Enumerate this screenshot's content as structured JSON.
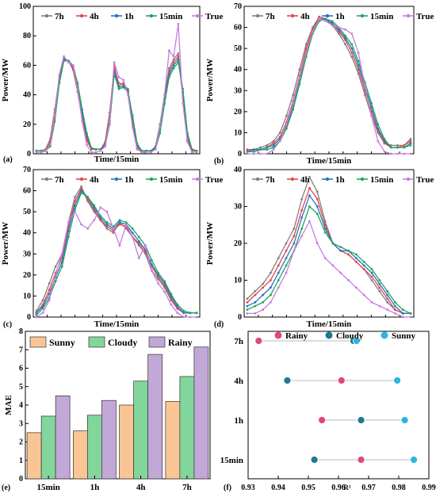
{
  "chart_data": [
    {
      "panel": "(a)",
      "type": "line",
      "xlabel": "Time/15min",
      "ylabel": "Power/MW",
      "ylim": [
        0,
        100
      ],
      "yticks": [
        0,
        20,
        40,
        60,
        80,
        100
      ],
      "legend": [
        "7h",
        "4h",
        "1h",
        "15min",
        "True"
      ],
      "colors": [
        "#808080",
        "#e8454a",
        "#2a73c8",
        "#1fa65a",
        "#c77dde"
      ],
      "grid": false,
      "series": [
        {
          "name": "7h",
          "values": [
            2,
            2,
            3,
            10,
            30,
            52,
            64,
            63,
            58,
            44,
            26,
            10,
            3,
            3,
            3,
            8,
            28,
            58,
            48,
            47,
            44,
            22,
            5,
            2,
            2,
            2,
            5,
            20,
            40,
            58,
            64,
            68,
            40,
            10,
            2,
            2
          ]
        },
        {
          "name": "4h",
          "values": [
            2,
            2,
            2,
            8,
            28,
            52,
            65,
            63,
            57,
            42,
            24,
            9,
            3,
            3,
            3,
            7,
            25,
            60,
            46,
            48,
            42,
            20,
            4,
            2,
            2,
            2,
            4,
            18,
            38,
            56,
            62,
            66,
            38,
            9,
            2,
            2
          ]
        },
        {
          "name": "1h",
          "values": [
            2,
            2,
            2,
            6,
            24,
            50,
            64,
            63,
            59,
            46,
            28,
            12,
            4,
            3,
            3,
            6,
            22,
            56,
            45,
            46,
            43,
            24,
            6,
            2,
            2,
            2,
            4,
            16,
            36,
            54,
            60,
            64,
            42,
            12,
            3,
            2
          ]
        },
        {
          "name": "15min",
          "values": [
            2,
            2,
            2,
            5,
            22,
            48,
            63,
            63,
            60,
            48,
            30,
            14,
            4,
            3,
            3,
            5,
            20,
            54,
            44,
            45,
            42,
            26,
            7,
            2,
            2,
            2,
            3,
            14,
            34,
            52,
            58,
            62,
            44,
            14,
            3,
            2
          ]
        },
        {
          "name": "True",
          "values": [
            1,
            1,
            2,
            6,
            26,
            54,
            66,
            62,
            60,
            44,
            22,
            6,
            1,
            1,
            2,
            5,
            22,
            62,
            52,
            50,
            40,
            18,
            3,
            1,
            1,
            1,
            3,
            18,
            40,
            70,
            66,
            88,
            34,
            8,
            1,
            1
          ]
        }
      ]
    },
    {
      "panel": "(b)",
      "type": "line",
      "xlabel": "Time/15min",
      "ylabel": "Power/MW",
      "ylim": [
        0,
        70
      ],
      "yticks": [
        0,
        10,
        20,
        30,
        40,
        50,
        60,
        70
      ],
      "legend": [
        "7h",
        "4h",
        "1h",
        "15min",
        "True"
      ],
      "colors": [
        "#808080",
        "#e8454a",
        "#2a73c8",
        "#1fa65a",
        "#c77dde"
      ],
      "grid": false,
      "series": [
        {
          "name": "7h",
          "values": [
            2,
            2,
            3,
            4,
            6,
            10,
            18,
            28,
            40,
            52,
            60,
            65,
            64,
            61,
            57,
            52,
            46,
            38,
            28,
            18,
            10,
            5,
            4,
            4,
            4,
            7
          ]
        },
        {
          "name": "4h",
          "values": [
            2,
            2,
            2,
            3,
            5,
            8,
            15,
            25,
            37,
            50,
            59,
            65,
            64,
            62,
            58,
            54,
            48,
            40,
            30,
            20,
            11,
            5,
            3,
            3,
            4,
            6
          ]
        },
        {
          "name": "1h",
          "values": [
            1,
            2,
            2,
            3,
            4,
            7,
            13,
            23,
            35,
            48,
            58,
            64,
            64,
            62,
            59,
            55,
            50,
            42,
            32,
            22,
            12,
            6,
            3,
            3,
            3,
            5
          ]
        },
        {
          "name": "15min",
          "values": [
            1,
            1,
            2,
            2,
            3,
            6,
            12,
            21,
            33,
            46,
            57,
            63,
            64,
            63,
            60,
            56,
            52,
            44,
            34,
            24,
            14,
            7,
            3,
            3,
            3,
            4
          ]
        },
        {
          "name": "True",
          "values": [
            0,
            0,
            0,
            0,
            2,
            6,
            14,
            24,
            36,
            48,
            58,
            64,
            63,
            61,
            60,
            59,
            57,
            48,
            32,
            18,
            6,
            1,
            0,
            0,
            0,
            0
          ]
        }
      ]
    },
    {
      "panel": "(c)",
      "type": "line",
      "xlabel": "Time/15min",
      "ylabel": "Power/MW",
      "ylim": [
        0,
        70
      ],
      "yticks": [
        0,
        10,
        20,
        30,
        40,
        50,
        60,
        70
      ],
      "legend": [
        "7h",
        "4h",
        "1h",
        "15min",
        "True"
      ],
      "colors": [
        "#808080",
        "#e8454a",
        "#2a73c8",
        "#1fa65a",
        "#c77dde"
      ],
      "grid": false,
      "series": [
        {
          "name": "7h",
          "values": [
            3,
            8,
            16,
            24,
            30,
            45,
            57,
            62,
            55,
            50,
            46,
            42,
            40,
            45,
            42,
            38,
            34,
            30,
            22,
            18,
            14,
            8,
            4,
            2,
            2,
            2
          ]
        },
        {
          "name": "4h",
          "values": [
            2,
            6,
            13,
            21,
            28,
            43,
            55,
            61,
            56,
            51,
            46,
            43,
            41,
            44,
            43,
            38,
            35,
            31,
            24,
            19,
            15,
            9,
            4,
            2,
            2,
            2
          ]
        },
        {
          "name": "1h",
          "values": [
            2,
            5,
            11,
            19,
            26,
            41,
            53,
            60,
            57,
            52,
            47,
            44,
            42,
            45,
            44,
            40,
            36,
            32,
            25,
            20,
            16,
            10,
            5,
            2,
            2,
            2
          ]
        },
        {
          "name": "15min",
          "values": [
            1,
            4,
            9,
            17,
            24,
            38,
            51,
            59,
            57,
            53,
            48,
            45,
            43,
            46,
            45,
            42,
            38,
            34,
            27,
            21,
            17,
            11,
            6,
            3,
            2,
            2
          ]
        },
        {
          "name": "True",
          "values": [
            0,
            2,
            8,
            20,
            30,
            45,
            50,
            44,
            42,
            46,
            52,
            50,
            42,
            34,
            44,
            38,
            28,
            34,
            22,
            16,
            12,
            6,
            2,
            0,
            0,
            0
          ]
        }
      ]
    },
    {
      "panel": "(d)",
      "type": "line",
      "xlabel": "Time/15min",
      "ylabel": "Power/MW",
      "ylim": [
        0,
        40
      ],
      "yticks": [
        0,
        10,
        20,
        30,
        40
      ],
      "legend": [
        "7h",
        "4h",
        "1h",
        "15min",
        "True"
      ],
      "colors": [
        "#808080",
        "#e8454a",
        "#2a73c8",
        "#1fa65a",
        "#c77dde"
      ],
      "grid": false,
      "series": [
        {
          "name": "7h",
          "values": [
            5,
            7,
            9,
            12,
            16,
            20,
            24,
            32,
            38,
            34,
            26,
            20,
            18,
            17,
            15,
            13,
            10,
            7,
            4,
            2,
            1,
            1
          ]
        },
        {
          "name": "4h",
          "values": [
            4,
            6,
            8,
            10,
            14,
            18,
            22,
            29,
            35,
            32,
            25,
            20,
            18,
            17,
            15,
            13,
            11,
            8,
            5,
            2,
            1,
            1
          ]
        },
        {
          "name": "1h",
          "values": [
            3,
            4,
            6,
            8,
            12,
            16,
            20,
            27,
            33,
            30,
            24,
            20,
            18,
            18,
            16,
            14,
            12,
            9,
            6,
            3,
            1,
            1
          ]
        },
        {
          "name": "15min",
          "values": [
            2,
            3,
            4,
            6,
            10,
            14,
            18,
            24,
            30,
            28,
            23,
            20,
            19,
            18,
            17,
            15,
            13,
            10,
            7,
            4,
            2,
            1
          ]
        },
        {
          "name": "True",
          "values": [
            1,
            1,
            2,
            4,
            8,
            12,
            18,
            22,
            26,
            20,
            16,
            14,
            12,
            10,
            8,
            6,
            4,
            3,
            2,
            1,
            0,
            0
          ]
        }
      ]
    },
    {
      "panel": "(e)",
      "type": "bar",
      "categories": [
        "15min",
        "1h",
        "4h",
        "7h"
      ],
      "ylabel": "MAE",
      "ylim": [
        0,
        8
      ],
      "yticks": [
        0,
        1,
        2,
        3,
        4,
        5,
        6,
        7,
        8
      ],
      "legend_placement": "top",
      "series": [
        {
          "name": "Sunny",
          "color": "#fac595",
          "values": [
            2.5,
            2.6,
            4.0,
            4.2
          ]
        },
        {
          "name": "Cloudy",
          "color": "#82d69c",
          "values": [
            3.4,
            3.45,
            5.3,
            5.55
          ]
        },
        {
          "name": "Rainy",
          "color": "#c2a8d6",
          "values": [
            4.5,
            4.25,
            6.75,
            7.15
          ]
        }
      ]
    },
    {
      "panel": "(f)",
      "type": "scatter",
      "categories": [
        "7h",
        "4h",
        "1h",
        "15min"
      ],
      "xlabel": "R²",
      "xlim": [
        0.93,
        0.99
      ],
      "xticks": [
        "0.93",
        "0.94",
        "0.95",
        "0.96",
        "0.97",
        "0.98",
        "0.99"
      ],
      "legend_placement": "top",
      "series": [
        {
          "name": "Rainy",
          "color": "#e0487a",
          "values": [
            0.9335,
            0.961,
            0.9545,
            0.9675
          ]
        },
        {
          "name": "Cloudy",
          "color": "#1e7a8e",
          "values": [
            0.965,
            0.943,
            0.9675,
            0.952
          ]
        },
        {
          "name": "Sunny",
          "color": "#2cb6dc",
          "values": [
            0.966,
            0.9795,
            0.982,
            0.985
          ]
        }
      ]
    }
  ]
}
